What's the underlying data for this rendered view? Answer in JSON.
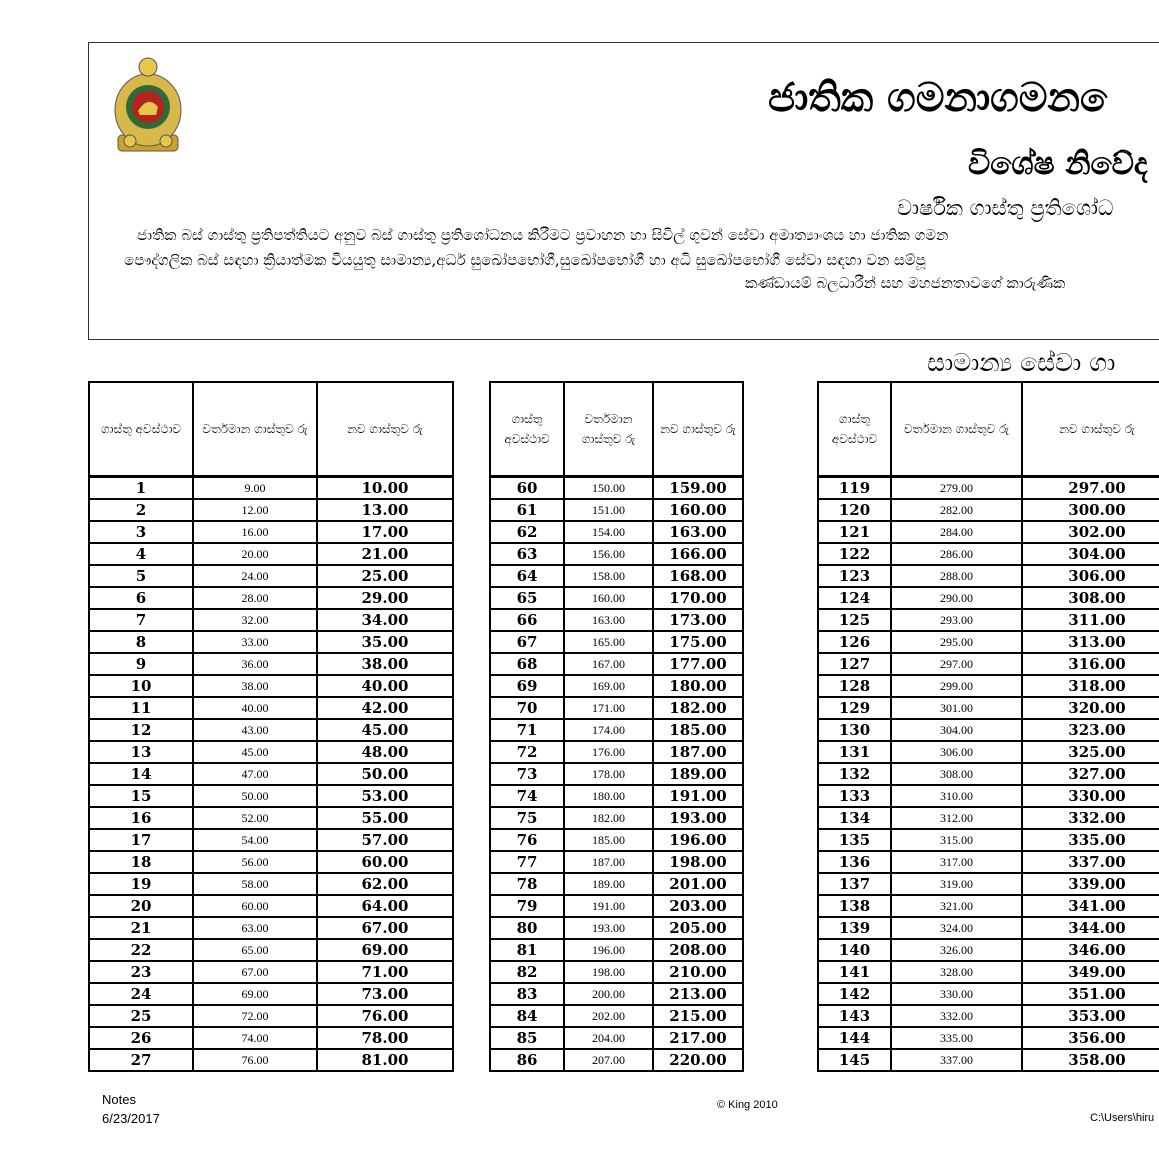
{
  "header": {
    "title": "ජාතික ගමනාගමන ෙ",
    "subtitle": "විශේෂ නිවේද",
    "subheading": "වාර්ෂික ගාස්තු ප්‍රතිශෝධ",
    "paragraph": [
      "ජාතික බස් ගාස්තු ප්‍රතිපත්තියට අනුව බස් ගාස්තු ප්‍රතිශෝධනය කිරීමට ප්‍රවාහන හා සිවිල් ගුවන් සේවා අමාත්‍යාංශය හා ජාතික ගමන",
      "පෞද්ගලික  බස් සඳහා ක්‍රියාත්මක වියයුතු සාමාන්‍ය,අර්ධ සුඛෝපභෝගී,සුඛෝපභෝගී හා අධි සුඛෝපභෝගී සේවා සඳහා වන සම්පූ",
      "කණ්ඩායම් බලධාරීන් සහ මහජනතාවගේ කාරුණික"
    ]
  },
  "section_title": "සාමාන්‍ය සේවා ගා",
  "columns": {
    "stage": "ගාස්තු අවස්ථාව",
    "current": "වර්තමාන ගාස්තුව රු",
    "new": "නව ගාස්තුව රු"
  },
  "tables": [
    {
      "rows": [
        [
          "1",
          "9.00",
          "10.00"
        ],
        [
          "2",
          "12.00",
          "13.00"
        ],
        [
          "3",
          "16.00",
          "17.00"
        ],
        [
          "4",
          "20.00",
          "21.00"
        ],
        [
          "5",
          "24.00",
          "25.00"
        ],
        [
          "6",
          "28.00",
          "29.00"
        ],
        [
          "7",
          "32.00",
          "34.00"
        ],
        [
          "8",
          "33.00",
          "35.00"
        ],
        [
          "9",
          "36.00",
          "38.00"
        ],
        [
          "10",
          "38.00",
          "40.00"
        ],
        [
          "11",
          "40.00",
          "42.00"
        ],
        [
          "12",
          "43.00",
          "45.00"
        ],
        [
          "13",
          "45.00",
          "48.00"
        ],
        [
          "14",
          "47.00",
          "50.00"
        ],
        [
          "15",
          "50.00",
          "53.00"
        ],
        [
          "16",
          "52.00",
          "55.00"
        ],
        [
          "17",
          "54.00",
          "57.00"
        ],
        [
          "18",
          "56.00",
          "60.00"
        ],
        [
          "19",
          "58.00",
          "62.00"
        ],
        [
          "20",
          "60.00",
          "64.00"
        ],
        [
          "21",
          "63.00",
          "67.00"
        ],
        [
          "22",
          "65.00",
          "69.00"
        ],
        [
          "23",
          "67.00",
          "71.00"
        ],
        [
          "24",
          "69.00",
          "73.00"
        ],
        [
          "25",
          "72.00",
          "76.00"
        ],
        [
          "26",
          "74.00",
          "78.00"
        ],
        [
          "27",
          "76.00",
          "81.00"
        ]
      ]
    },
    {
      "rows": [
        [
          "60",
          "150.00",
          "159.00"
        ],
        [
          "61",
          "151.00",
          "160.00"
        ],
        [
          "62",
          "154.00",
          "163.00"
        ],
        [
          "63",
          "156.00",
          "166.00"
        ],
        [
          "64",
          "158.00",
          "168.00"
        ],
        [
          "65",
          "160.00",
          "170.00"
        ],
        [
          "66",
          "163.00",
          "173.00"
        ],
        [
          "67",
          "165.00",
          "175.00"
        ],
        [
          "68",
          "167.00",
          "177.00"
        ],
        [
          "69",
          "169.00",
          "180.00"
        ],
        [
          "70",
          "171.00",
          "182.00"
        ],
        [
          "71",
          "174.00",
          "185.00"
        ],
        [
          "72",
          "176.00",
          "187.00"
        ],
        [
          "73",
          "178.00",
          "189.00"
        ],
        [
          "74",
          "180.00",
          "191.00"
        ],
        [
          "75",
          "182.00",
          "193.00"
        ],
        [
          "76",
          "185.00",
          "196.00"
        ],
        [
          "77",
          "187.00",
          "198.00"
        ],
        [
          "78",
          "189.00",
          "201.00"
        ],
        [
          "79",
          "191.00",
          "203.00"
        ],
        [
          "80",
          "193.00",
          "205.00"
        ],
        [
          "81",
          "196.00",
          "208.00"
        ],
        [
          "82",
          "198.00",
          "210.00"
        ],
        [
          "83",
          "200.00",
          "213.00"
        ],
        [
          "84",
          "202.00",
          "215.00"
        ],
        [
          "85",
          "204.00",
          "217.00"
        ],
        [
          "86",
          "207.00",
          "220.00"
        ]
      ]
    },
    {
      "rows": [
        [
          "119",
          "279.00",
          "297.00"
        ],
        [
          "120",
          "282.00",
          "300.00"
        ],
        [
          "121",
          "284.00",
          "302.00"
        ],
        [
          "122",
          "286.00",
          "304.00"
        ],
        [
          "123",
          "288.00",
          "306.00"
        ],
        [
          "124",
          "290.00",
          "308.00"
        ],
        [
          "125",
          "293.00",
          "311.00"
        ],
        [
          "126",
          "295.00",
          "313.00"
        ],
        [
          "127",
          "297.00",
          "316.00"
        ],
        [
          "128",
          "299.00",
          "318.00"
        ],
        [
          "129",
          "301.00",
          "320.00"
        ],
        [
          "130",
          "304.00",
          "323.00"
        ],
        [
          "131",
          "306.00",
          "325.00"
        ],
        [
          "132",
          "308.00",
          "327.00"
        ],
        [
          "133",
          "310.00",
          "330.00"
        ],
        [
          "134",
          "312.00",
          "332.00"
        ],
        [
          "135",
          "315.00",
          "335.00"
        ],
        [
          "136",
          "317.00",
          "337.00"
        ],
        [
          "137",
          "319.00",
          "339.00"
        ],
        [
          "138",
          "321.00",
          "341.00"
        ],
        [
          "139",
          "324.00",
          "344.00"
        ],
        [
          "140",
          "326.00",
          "346.00"
        ],
        [
          "141",
          "328.00",
          "349.00"
        ],
        [
          "142",
          "330.00",
          "351.00"
        ],
        [
          "143",
          "332.00",
          "353.00"
        ],
        [
          "144",
          "335.00",
          "356.00"
        ],
        [
          "145",
          "337.00",
          "358.00"
        ]
      ]
    }
  ],
  "footer": {
    "notes": "Notes",
    "date": "6/23/2017",
    "copyright": "© King 2010",
    "path": "C:\\Users\\hiru"
  },
  "colors": {
    "emblem_gold": "#c9a227",
    "emblem_red": "#b3261e"
  }
}
